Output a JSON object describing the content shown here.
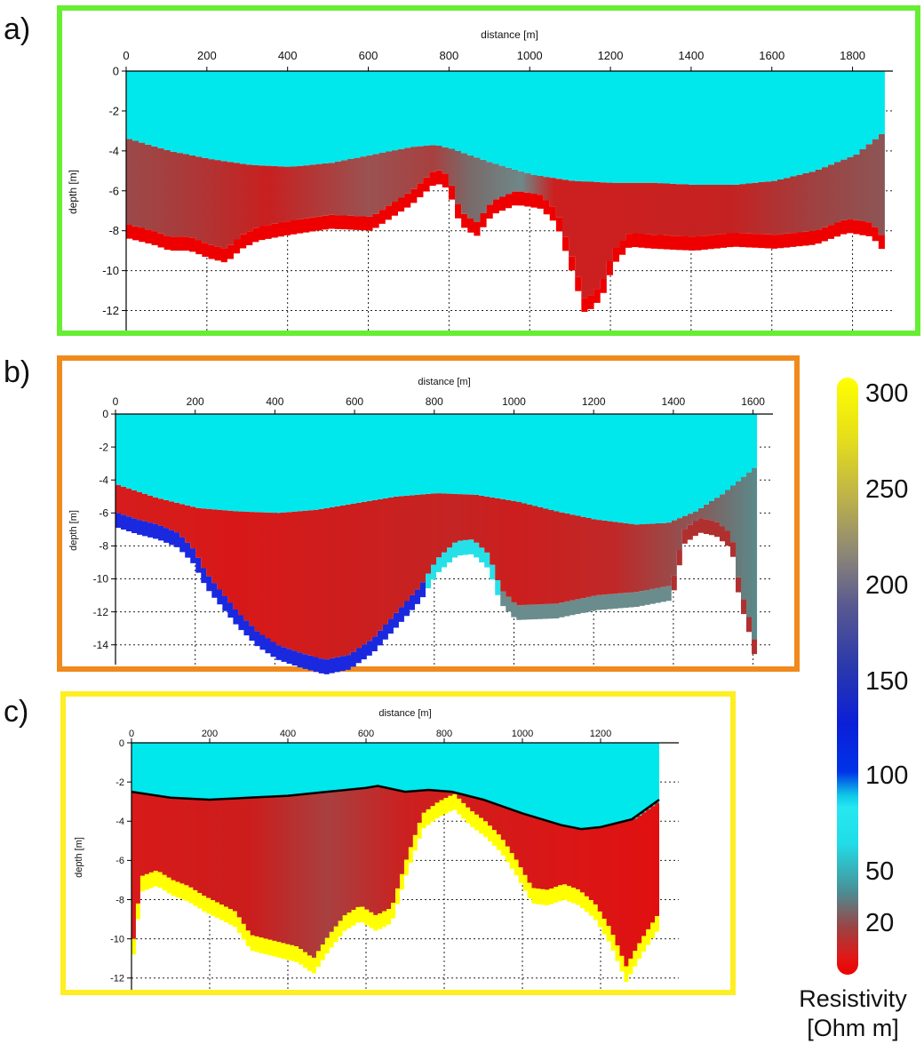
{
  "panel_labels": [
    "a)",
    "b)",
    "c)"
  ],
  "colorbar": {
    "title_line1": "Resistivity",
    "title_line2": "[Ohm m]",
    "ticks": [
      {
        "label": "300",
        "value": 300
      },
      {
        "label": "250",
        "value": 250
      },
      {
        "label": "200",
        "value": 200
      },
      {
        "label": "150",
        "value": 150
      },
      {
        "label": "100",
        "value": 100
      },
      {
        "label": "50",
        "value": 50
      },
      {
        "label": "20",
        "value": 20
      }
    ]
  },
  "colors": {
    "frame_a": "#66ee33",
    "frame_b": "#f08a1c",
    "frame_c": "#ffee22",
    "water": "#00e8ec",
    "sediment_low": "#dd1a1a",
    "sediment_mid": "#9a5a5a",
    "sediment_high": "#6e7f80",
    "base_blue": "#1530dd",
    "base_yellow": "#ffff00",
    "base_cyan": "#4cc8cc"
  },
  "chart_data": [
    {
      "type": "heatmap",
      "panel": "a)",
      "xlabel": "distance [m]",
      "ylabel": "depth [m]",
      "xlim": [
        0,
        1900
      ],
      "ylim": [
        -13,
        0
      ],
      "x_ticks": [
        0,
        200,
        400,
        600,
        800,
        1000,
        1200,
        1400,
        1600,
        1800
      ],
      "y_ticks": [
        0,
        -2,
        -4,
        -6,
        -8,
        -10,
        -12
      ],
      "x_extent": [
        0,
        1880
      ],
      "base_color": "#ee1111",
      "water_bottom": [
        [
          0,
          -3.4
        ],
        [
          100,
          -4.0
        ],
        [
          200,
          -4.4
        ],
        [
          300,
          -4.7
        ],
        [
          400,
          -4.8
        ],
        [
          500,
          -4.6
        ],
        [
          600,
          -4.2
        ],
        [
          700,
          -3.8
        ],
        [
          760,
          -3.7
        ],
        [
          800,
          -3.9
        ],
        [
          900,
          -4.6
        ],
        [
          1000,
          -5.2
        ],
        [
          1100,
          -5.5
        ],
        [
          1200,
          -5.6
        ],
        [
          1300,
          -5.6
        ],
        [
          1400,
          -5.7
        ],
        [
          1500,
          -5.7
        ],
        [
          1600,
          -5.5
        ],
        [
          1700,
          -5.0
        ],
        [
          1800,
          -4.2
        ],
        [
          1880,
          -2.9
        ]
      ],
      "sediment_bottom": [
        [
          0,
          -7.7
        ],
        [
          60,
          -8.0
        ],
        [
          100,
          -8.3
        ],
        [
          150,
          -8.3
        ],
        [
          200,
          -8.7
        ],
        [
          240,
          -8.9
        ],
        [
          280,
          -8.2
        ],
        [
          320,
          -7.8
        ],
        [
          400,
          -7.5
        ],
        [
          500,
          -7.2
        ],
        [
          600,
          -7.3
        ],
        [
          700,
          -6.0
        ],
        [
          760,
          -4.9
        ],
        [
          790,
          -5.2
        ],
        [
          820,
          -7.0
        ],
        [
          860,
          -7.6
        ],
        [
          900,
          -6.5
        ],
        [
          960,
          -6.0
        ],
        [
          1020,
          -6.2
        ],
        [
          1060,
          -7.0
        ],
        [
          1100,
          -9.5
        ],
        [
          1130,
          -11.5
        ],
        [
          1170,
          -10.7
        ],
        [
          1200,
          -9.0
        ],
        [
          1240,
          -8.1
        ],
        [
          1300,
          -8.2
        ],
        [
          1400,
          -8.3
        ],
        [
          1500,
          -8.1
        ],
        [
          1600,
          -8.2
        ],
        [
          1700,
          -8.0
        ],
        [
          1780,
          -7.4
        ],
        [
          1840,
          -7.6
        ],
        [
          1880,
          -8.6
        ]
      ],
      "sediment_color_stops": [
        [
          0,
          "#9a4a4a"
        ],
        [
          150,
          "#aa3a3a"
        ],
        [
          350,
          "#c82020"
        ],
        [
          600,
          "#9a5252"
        ],
        [
          760,
          "#a84040"
        ],
        [
          850,
          "#7a6a6a"
        ],
        [
          980,
          "#6e8888"
        ],
        [
          1060,
          "#cc2020"
        ],
        [
          1200,
          "#cc2020"
        ],
        [
          1500,
          "#c42222"
        ],
        [
          1700,
          "#a04040"
        ],
        [
          1880,
          "#8c5656"
        ]
      ],
      "base_band_m": 0.7,
      "base_band_color": "#ee0000"
    },
    {
      "type": "heatmap",
      "panel": "b)",
      "xlabel": "distance [m]",
      "ylabel": "depth [m]",
      "xlim": [
        0,
        1650
      ],
      "ylim": [
        -15.2,
        0
      ],
      "x_ticks": [
        0,
        200,
        400,
        600,
        800,
        1000,
        1200,
        1400,
        1600
      ],
      "y_ticks": [
        0,
        -2,
        -4,
        -6,
        -8,
        -10,
        -12,
        -14
      ],
      "x_extent": [
        0,
        1610
      ],
      "base_color": "#1a28e0",
      "water_bottom": [
        [
          0,
          -4.3
        ],
        [
          100,
          -5.1
        ],
        [
          200,
          -5.7
        ],
        [
          300,
          -5.9
        ],
        [
          400,
          -6.0
        ],
        [
          500,
          -5.8
        ],
        [
          600,
          -5.4
        ],
        [
          700,
          -5.0
        ],
        [
          800,
          -4.8
        ],
        [
          900,
          -4.9
        ],
        [
          1000,
          -5.3
        ],
        [
          1100,
          -5.9
        ],
        [
          1200,
          -6.4
        ],
        [
          1300,
          -6.7
        ],
        [
          1380,
          -6.6
        ],
        [
          1450,
          -5.9
        ],
        [
          1520,
          -4.8
        ],
        [
          1600,
          -3.2
        ]
      ],
      "sediment_bottom": [
        [
          0,
          -6.0
        ],
        [
          50,
          -6.4
        ],
        [
          100,
          -6.7
        ],
        [
          150,
          -7.2
        ],
        [
          190,
          -8.2
        ],
        [
          220,
          -9.6
        ],
        [
          260,
          -10.8
        ],
        [
          300,
          -12.0
        ],
        [
          350,
          -13.2
        ],
        [
          400,
          -14.0
        ],
        [
          460,
          -14.5
        ],
        [
          520,
          -14.9
        ],
        [
          580,
          -14.6
        ],
        [
          640,
          -13.6
        ],
        [
          700,
          -12.0
        ],
        [
          760,
          -10.4
        ],
        [
          800,
          -8.8
        ],
        [
          850,
          -7.7
        ],
        [
          890,
          -7.6
        ],
        [
          930,
          -8.5
        ],
        [
          960,
          -10.6
        ],
        [
          1000,
          -11.6
        ],
        [
          1100,
          -11.5
        ],
        [
          1200,
          -11.0
        ],
        [
          1300,
          -10.8
        ],
        [
          1390,
          -10.4
        ],
        [
          1420,
          -7.0
        ],
        [
          1460,
          -6.3
        ],
        [
          1500,
          -6.5
        ],
        [
          1540,
          -7.3
        ],
        [
          1560,
          -10.5
        ],
        [
          1580,
          -12.0
        ],
        [
          1600,
          -14.0
        ],
        [
          1610,
          -14.2
        ]
      ],
      "sediment_color_stops": [
        [
          0,
          "#d61c1c"
        ],
        [
          300,
          "#d81818"
        ],
        [
          600,
          "#cc1e1e"
        ],
        [
          850,
          "#c42424"
        ],
        [
          1000,
          "#cc1e1e"
        ],
        [
          1250,
          "#c02828"
        ],
        [
          1400,
          "#9a4a4a"
        ],
        [
          1500,
          "#7a6666"
        ],
        [
          1610,
          "#5a8a8a"
        ]
      ],
      "base_band_m": 0.9,
      "base_band_color": "#1a28e0",
      "base_band_segments": [
        {
          "from": 0,
          "to": 780,
          "color": "#1a28e0"
        },
        {
          "from": 780,
          "to": 960,
          "color": "#26e0e8"
        },
        {
          "from": 960,
          "to": 1400,
          "color": "#6a8c8c"
        },
        {
          "from": 1400,
          "to": 1610,
          "color": "#b03030"
        }
      ]
    },
    {
      "type": "heatmap",
      "panel": "c)",
      "xlabel": "distance [m]",
      "ylabel": "depth [m]",
      "xlim": [
        0,
        1400
      ],
      "ylim": [
        -12.6,
        0
      ],
      "x_ticks": [
        0,
        200,
        400,
        600,
        800,
        1000,
        1200
      ],
      "y_ticks": [
        0,
        -2,
        -4,
        -6,
        -8,
        -10,
        -12
      ],
      "x_extent": [
        0,
        1350
      ],
      "base_color": "#ffff00",
      "water_bottom": [
        [
          0,
          -2.5
        ],
        [
          100,
          -2.8
        ],
        [
          200,
          -2.9
        ],
        [
          300,
          -2.8
        ],
        [
          400,
          -2.7
        ],
        [
          500,
          -2.5
        ],
        [
          600,
          -2.3
        ],
        [
          630,
          -2.2
        ],
        [
          700,
          -2.5
        ],
        [
          760,
          -2.4
        ],
        [
          820,
          -2.5
        ],
        [
          900,
          -2.9
        ],
        [
          1000,
          -3.6
        ],
        [
          1100,
          -4.2
        ],
        [
          1150,
          -4.4
        ],
        [
          1200,
          -4.3
        ],
        [
          1280,
          -3.9
        ],
        [
          1350,
          -2.9
        ]
      ],
      "sediment_bottom": [
        [
          0,
          -10.0
        ],
        [
          20,
          -6.8
        ],
        [
          60,
          -6.5
        ],
        [
          100,
          -7.0
        ],
        [
          140,
          -7.3
        ],
        [
          180,
          -7.8
        ],
        [
          220,
          -8.2
        ],
        [
          260,
          -8.6
        ],
        [
          300,
          -9.8
        ],
        [
          340,
          -10.0
        ],
        [
          380,
          -10.2
        ],
        [
          420,
          -10.4
        ],
        [
          460,
          -11.0
        ],
        [
          500,
          -9.8
        ],
        [
          540,
          -8.8
        ],
        [
          580,
          -8.3
        ],
        [
          620,
          -8.8
        ],
        [
          660,
          -8.4
        ],
        [
          700,
          -5.8
        ],
        [
          740,
          -3.6
        ],
        [
          780,
          -3.0
        ],
        [
          820,
          -2.6
        ],
        [
          860,
          -3.4
        ],
        [
          900,
          -4.0
        ],
        [
          940,
          -4.8
        ],
        [
          980,
          -6.0
        ],
        [
          1020,
          -7.4
        ],
        [
          1060,
          -7.5
        ],
        [
          1100,
          -7.2
        ],
        [
          1140,
          -7.5
        ],
        [
          1180,
          -8.2
        ],
        [
          1220,
          -9.5
        ],
        [
          1260,
          -11.4
        ],
        [
          1300,
          -10.0
        ],
        [
          1340,
          -8.8
        ],
        [
          1350,
          -8.6
        ]
      ],
      "sediment_color_stops": [
        [
          0,
          "#d81a1a"
        ],
        [
          300,
          "#cc1c1c"
        ],
        [
          500,
          "#a84040"
        ],
        [
          700,
          "#cc2020"
        ],
        [
          900,
          "#d41a1a"
        ],
        [
          1200,
          "#dd1414"
        ],
        [
          1350,
          "#e01010"
        ]
      ],
      "base_band_m": 0.8,
      "base_band_color": "#ffff00",
      "interface_line": true
    }
  ]
}
